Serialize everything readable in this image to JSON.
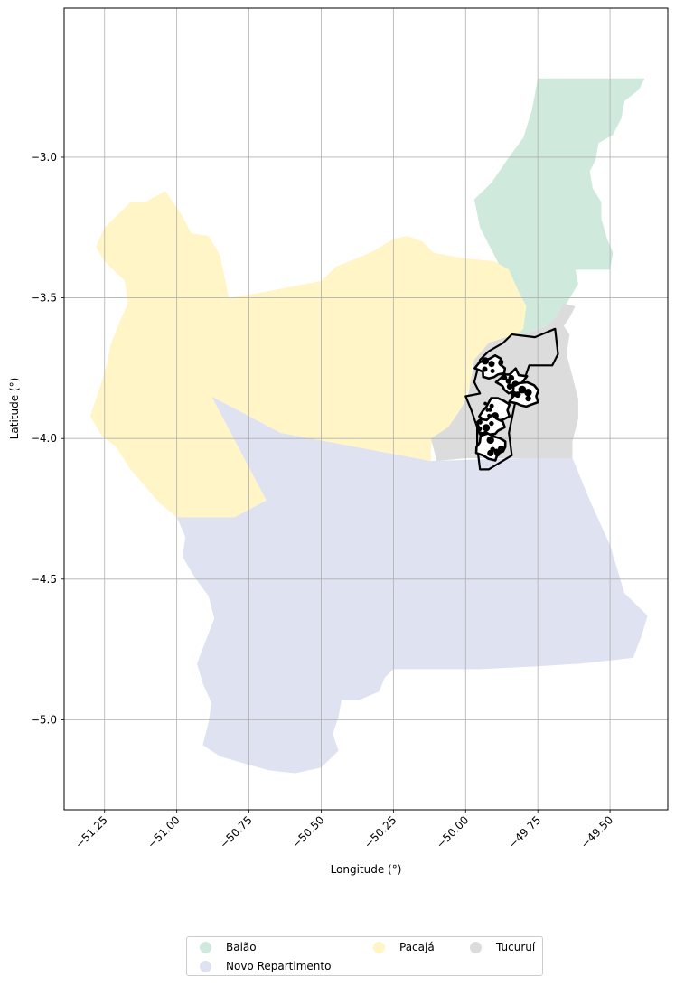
{
  "chart_data": {
    "type": "map",
    "xlabel": "Longitude (°)",
    "ylabel": "Latitude (°)",
    "xlim": [
      -51.39,
      -49.3
    ],
    "ylim": [
      -5.32,
      -2.47
    ],
    "grid": true,
    "xticks": [
      -51.25,
      -51.0,
      -50.75,
      -50.5,
      -50.25,
      -50.0,
      -49.75,
      -49.5
    ],
    "xtick_labels": [
      "−51.25",
      "−51.00",
      "−50.75",
      "−50.50",
      "−50.25",
      "−50.00",
      "−49.75",
      "−49.50"
    ],
    "yticks": [
      -3.0,
      -3.5,
      -4.0,
      -4.5,
      -5.0
    ],
    "ytick_labels": [
      "−3.0",
      "−3.5",
      "−4.0",
      "−4.5",
      "−5.0"
    ],
    "legend_position": "below-center",
    "regions": [
      {
        "name": "Baião",
        "color": "#cfeadc",
        "polygon": [
          [
            -49.75,
            -2.72
          ],
          [
            -49.62,
            -2.72
          ],
          [
            -49.38,
            -2.72
          ],
          [
            -49.4,
            -2.76
          ],
          [
            -49.45,
            -2.8
          ],
          [
            -49.46,
            -2.86
          ],
          [
            -49.49,
            -2.92
          ],
          [
            -49.54,
            -2.95
          ],
          [
            -49.55,
            -3.01
          ],
          [
            -49.57,
            -3.05
          ],
          [
            -49.56,
            -3.11
          ],
          [
            -49.53,
            -3.16
          ],
          [
            -49.53,
            -3.22
          ],
          [
            -49.51,
            -3.29
          ],
          [
            -49.49,
            -3.34
          ],
          [
            -49.5,
            -3.4
          ],
          [
            -49.62,
            -3.4
          ],
          [
            -49.61,
            -3.45
          ],
          [
            -49.65,
            -3.52
          ],
          [
            -49.68,
            -3.57
          ],
          [
            -49.72,
            -3.6
          ],
          [
            -49.8,
            -3.63
          ],
          [
            -49.86,
            -3.64
          ],
          [
            -49.94,
            -3.66
          ],
          [
            -49.98,
            -3.71
          ],
          [
            -49.91,
            -3.66
          ],
          [
            -49.85,
            -3.58
          ],
          [
            -49.82,
            -3.51
          ],
          [
            -49.84,
            -3.44
          ],
          [
            -49.88,
            -3.39
          ],
          [
            -49.91,
            -3.33
          ],
          [
            -49.95,
            -3.25
          ],
          [
            -49.97,
            -3.15
          ],
          [
            -49.91,
            -3.09
          ],
          [
            -49.85,
            -3.0
          ],
          [
            -49.8,
            -2.93
          ],
          [
            -49.77,
            -2.83
          ],
          [
            -49.75,
            -2.72
          ]
        ]
      },
      {
        "name": "Novo Repartimento",
        "color": "#dee2f1",
        "polygon": [
          [
            -50.88,
            -3.85
          ],
          [
            -50.64,
            -3.98
          ],
          [
            -50.38,
            -4.03
          ],
          [
            -50.12,
            -4.08
          ],
          [
            -49.8,
            -4.07
          ],
          [
            -49.63,
            -4.07
          ],
          [
            -49.57,
            -4.22
          ],
          [
            -49.5,
            -4.38
          ],
          [
            -49.45,
            -4.55
          ],
          [
            -49.4,
            -4.6
          ],
          [
            -49.37,
            -4.63
          ],
          [
            -49.39,
            -4.7
          ],
          [
            -49.42,
            -4.78
          ],
          [
            -49.6,
            -4.8
          ],
          [
            -49.75,
            -4.81
          ],
          [
            -49.95,
            -4.82
          ],
          [
            -50.15,
            -4.82
          ],
          [
            -50.25,
            -4.82
          ],
          [
            -50.28,
            -4.85
          ],
          [
            -50.3,
            -4.9
          ],
          [
            -50.37,
            -4.93
          ],
          [
            -50.43,
            -4.93
          ],
          [
            -50.44,
            -4.99
          ],
          [
            -50.46,
            -5.05
          ],
          [
            -50.44,
            -5.11
          ],
          [
            -50.5,
            -5.17
          ],
          [
            -50.59,
            -5.19
          ],
          [
            -50.68,
            -5.18
          ],
          [
            -50.75,
            -5.16
          ],
          [
            -50.85,
            -5.13
          ],
          [
            -50.91,
            -5.09
          ],
          [
            -50.89,
            -5.01
          ],
          [
            -50.88,
            -4.94
          ],
          [
            -50.91,
            -4.87
          ],
          [
            -50.93,
            -4.8
          ],
          [
            -50.9,
            -4.72
          ],
          [
            -50.87,
            -4.64
          ],
          [
            -50.89,
            -4.56
          ],
          [
            -50.94,
            -4.49
          ],
          [
            -50.98,
            -4.42
          ],
          [
            -50.97,
            -4.35
          ],
          [
            -51.0,
            -4.28
          ],
          [
            -50.8,
            -4.28
          ],
          [
            -50.69,
            -4.22
          ],
          [
            -50.88,
            -3.85
          ]
        ]
      },
      {
        "name": "Pacajá",
        "color": "#fff5c6",
        "polygon": [
          [
            -51.11,
            -3.16
          ],
          [
            -51.04,
            -3.12
          ],
          [
            -50.98,
            -3.21
          ],
          [
            -50.95,
            -3.27
          ],
          [
            -50.89,
            -3.28
          ],
          [
            -50.85,
            -3.35
          ],
          [
            -50.83,
            -3.45
          ],
          [
            -50.82,
            -3.5
          ],
          [
            -50.7,
            -3.48
          ],
          [
            -50.5,
            -3.44
          ],
          [
            -50.45,
            -3.39
          ],
          [
            -50.33,
            -3.34
          ],
          [
            -50.25,
            -3.29
          ],
          [
            -50.2,
            -3.28
          ],
          [
            -50.15,
            -3.3
          ],
          [
            -50.11,
            -3.34
          ],
          [
            -50.0,
            -3.36
          ],
          [
            -49.9,
            -3.37
          ],
          [
            -49.85,
            -3.4
          ],
          [
            -49.82,
            -3.47
          ],
          [
            -49.79,
            -3.53
          ],
          [
            -49.8,
            -3.61
          ],
          [
            -49.84,
            -3.65
          ],
          [
            -49.94,
            -3.7
          ],
          [
            -49.98,
            -3.74
          ],
          [
            -49.98,
            -3.8
          ],
          [
            -50.0,
            -3.85
          ],
          [
            -50.02,
            -3.9
          ],
          [
            -50.06,
            -3.96
          ],
          [
            -50.12,
            -4.02
          ],
          [
            -50.12,
            -4.08
          ],
          [
            -50.38,
            -4.03
          ],
          [
            -50.64,
            -3.98
          ],
          [
            -50.88,
            -3.85
          ],
          [
            -50.69,
            -4.22
          ],
          [
            -50.8,
            -4.28
          ],
          [
            -51.0,
            -4.28
          ],
          [
            -51.06,
            -4.23
          ],
          [
            -51.11,
            -4.17
          ],
          [
            -51.16,
            -4.11
          ],
          [
            -51.21,
            -4.03
          ],
          [
            -51.26,
            -3.99
          ],
          [
            -51.3,
            -3.92
          ],
          [
            -51.27,
            -3.83
          ],
          [
            -51.24,
            -3.73
          ],
          [
            -51.23,
            -3.67
          ],
          [
            -51.2,
            -3.59
          ],
          [
            -51.17,
            -3.52
          ],
          [
            -51.18,
            -3.44
          ],
          [
            -51.25,
            -3.37
          ],
          [
            -51.28,
            -3.32
          ],
          [
            -51.25,
            -3.25
          ],
          [
            -51.2,
            -3.2
          ],
          [
            -51.16,
            -3.16
          ],
          [
            -51.11,
            -3.16
          ]
        ]
      },
      {
        "name": "Tucuruí",
        "color": "#dcdcdc",
        "polygon": [
          [
            -49.66,
            -3.52
          ],
          [
            -49.62,
            -3.53
          ],
          [
            -49.64,
            -3.57
          ],
          [
            -49.66,
            -3.6
          ],
          [
            -49.64,
            -3.63
          ],
          [
            -49.65,
            -3.7
          ],
          [
            -49.63,
            -3.78
          ],
          [
            -49.61,
            -3.86
          ],
          [
            -49.61,
            -3.93
          ],
          [
            -49.63,
            -4.01
          ],
          [
            -49.63,
            -4.07
          ],
          [
            -49.8,
            -4.07
          ],
          [
            -50.0,
            -4.07
          ],
          [
            -50.1,
            -4.08
          ],
          [
            -50.12,
            -4.0
          ],
          [
            -50.06,
            -3.96
          ],
          [
            -50.02,
            -3.9
          ],
          [
            -49.99,
            -3.84
          ],
          [
            -49.98,
            -3.78
          ],
          [
            -49.97,
            -3.72
          ],
          [
            -49.92,
            -3.66
          ],
          [
            -49.86,
            -3.64
          ],
          [
            -49.8,
            -3.63
          ],
          [
            -49.72,
            -3.6
          ],
          [
            -49.68,
            -3.56
          ],
          [
            -49.66,
            -3.52
          ]
        ]
      }
    ],
    "outline": {
      "color": "#000000",
      "polygon": [
        [
          -49.69,
          -3.61
        ],
        [
          -49.76,
          -3.64
        ],
        [
          -49.84,
          -3.63
        ],
        [
          -49.87,
          -3.66
        ],
        [
          -49.92,
          -3.69
        ],
        [
          -49.95,
          -3.72
        ],
        [
          -49.97,
          -3.8
        ],
        [
          -49.95,
          -3.84
        ],
        [
          -50.0,
          -3.85
        ],
        [
          -49.98,
          -3.9
        ],
        [
          -49.96,
          -3.96
        ],
        [
          -49.96,
          -4.03
        ],
        [
          -49.95,
          -4.11
        ],
        [
          -49.92,
          -4.11
        ],
        [
          -49.84,
          -4.06
        ],
        [
          -49.85,
          -3.98
        ],
        [
          -49.83,
          -3.88
        ],
        [
          -49.8,
          -3.8
        ],
        [
          -49.78,
          -3.74
        ],
        [
          -49.7,
          -3.74
        ],
        [
          -49.68,
          -3.7
        ],
        [
          -49.69,
          -3.61
        ]
      ]
    },
    "clusters": [
      {
        "lon": -49.91,
        "lat": -3.75
      },
      {
        "lon": -49.84,
        "lat": -3.8
      },
      {
        "lon": -49.8,
        "lat": -3.85
      },
      {
        "lon": -49.9,
        "lat": -3.9
      },
      {
        "lon": -49.92,
        "lat": -3.96
      },
      {
        "lon": -49.91,
        "lat": -4.03
      }
    ]
  },
  "legend": {
    "items": [
      {
        "label": "Baião",
        "color": "#cfeadc"
      },
      {
        "label": "Novo Repartimento",
        "color": "#dee2f1"
      },
      {
        "label": "Pacajá",
        "color": "#fff5c6"
      },
      {
        "label": "Tucuruí",
        "color": "#dcdcdc"
      }
    ]
  }
}
